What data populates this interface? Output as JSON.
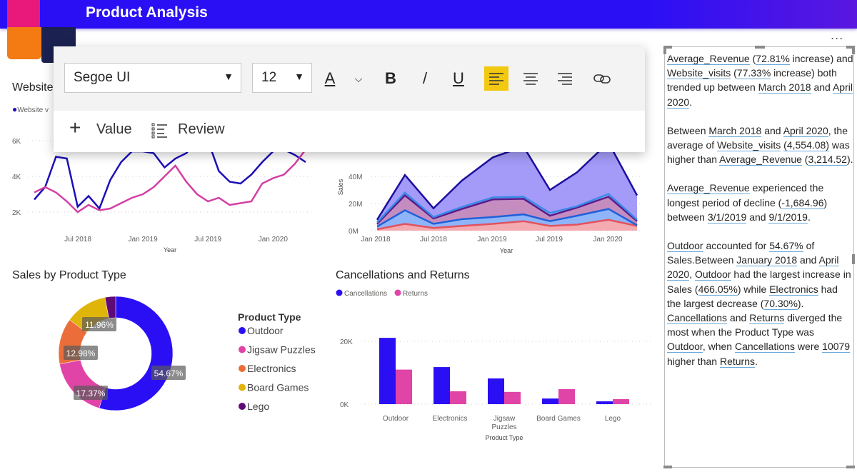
{
  "header": {
    "title": "Product Analysis"
  },
  "more_label": "...",
  "line_visual": {
    "title": "Website",
    "legend": "Website v"
  },
  "area_visual": {},
  "donut_visual": {
    "title": "Sales by Product Type",
    "legend_title": "Product Type"
  },
  "bar_visual": {
    "title": "Cancellations and Returns"
  },
  "toolbar": {
    "font": "Segoe UI",
    "size": "12",
    "font_color": "A",
    "bold": "B",
    "italic": "/",
    "underline": "U",
    "value_label": "Value",
    "review_label": "Review"
  },
  "colors": {
    "accent": "#2a0ff5",
    "highlight": "#f2c811",
    "pink": "#e044a7",
    "orange": "#eb6d3a",
    "gold": "#e0b50a",
    "purple": "#5f0a77"
  },
  "narrative": [
    [
      {
        "t": "Average_Revenue",
        "u": 1
      },
      {
        "t": " ("
      },
      {
        "t": "72.81%",
        "u": 1
      },
      {
        "t": " increase) and "
      },
      {
        "t": "Website_visits",
        "u": 1
      },
      {
        "t": " ("
      },
      {
        "t": "77.33%",
        "u": 1
      },
      {
        "t": " increase) both trended up between "
      },
      {
        "t": "March 2018",
        "u": 1
      },
      {
        "t": " and "
      },
      {
        "t": "April 2020",
        "u": 1
      },
      {
        "t": "."
      }
    ],
    [
      {
        "t": "Between "
      },
      {
        "t": "March 2018",
        "u": 1
      },
      {
        "t": " and "
      },
      {
        "t": "April 2020",
        "u": 1
      },
      {
        "t": ", the average of "
      },
      {
        "t": "Website_visits",
        "u": 1
      },
      {
        "t": " "
      },
      {
        "t": "(4,554.08)",
        "u": 1
      },
      {
        "t": " was higher than "
      },
      {
        "t": "Average_Revenue",
        "u": 1
      },
      {
        "t": " ("
      },
      {
        "t": "3,214.52",
        "u": 1
      },
      {
        "t": ")."
      }
    ],
    [
      {
        "t": "Average_Revenue",
        "u": 1
      },
      {
        "t": " experienced the longest period of decline ("
      },
      {
        "t": "-1,684.96",
        "u": 1
      },
      {
        "t": ") between "
      },
      {
        "t": "3/1/2019",
        "u": 1
      },
      {
        "t": " and "
      },
      {
        "t": "9/1/2019",
        "u": 1
      },
      {
        "t": "."
      }
    ],
    [
      {
        "t": "Outdoor",
        "u": 1
      },
      {
        "t": " accounted for "
      },
      {
        "t": "54.67%",
        "u": 1
      },
      {
        "t": " of Sales.Between "
      },
      {
        "t": "January 2018",
        "u": 1
      },
      {
        "t": " and "
      },
      {
        "t": "April 2020",
        "u": 1
      },
      {
        "t": ", "
      },
      {
        "t": "Outdoor",
        "u": 1
      },
      {
        "t": " had the largest increase in Sales ("
      },
      {
        "t": "466.05%",
        "u": 1
      },
      {
        "t": ") while "
      },
      {
        "t": "Electronics",
        "u": 1
      },
      {
        "t": " had the largest decrease ("
      },
      {
        "t": "70.30%",
        "u": 1
      },
      {
        "t": "). "
      },
      {
        "t": "Cancellations",
        "u": 1
      },
      {
        "t": " and "
      },
      {
        "t": "Returns",
        "u": 1
      },
      {
        "t": " diverged the most when the Product Type was "
      },
      {
        "t": "Outdoor",
        "u": 1
      },
      {
        "t": ", when "
      },
      {
        "t": "Cancellations",
        "u": 1
      },
      {
        "t": " were "
      },
      {
        "t": "10079",
        "u": 1
      },
      {
        "t": " higher than "
      },
      {
        "t": "Returns",
        "u": 1
      },
      {
        "t": "."
      }
    ]
  ],
  "chart_data": [
    {
      "type": "line",
      "title": "Website",
      "xlabel": "Year",
      "ylabel": "",
      "x_start": "Mar 2018",
      "x_end": "Apr 2020",
      "x_ticks": [
        "Jul 2018",
        "Jan 2019",
        "Jul 2019",
        "Jan 2020"
      ],
      "y_ticks": [
        "2K",
        "4K",
        "6K"
      ],
      "ylim": [
        0,
        7000
      ],
      "series": [
        {
          "name": "Website_visits",
          "color": "#1c0fb8",
          "values": [
            2700,
            3400,
            5100,
            5000,
            2300,
            2900,
            2200,
            3800,
            4800,
            5400,
            5400,
            5300,
            4500,
            5000,
            5300,
            6000,
            6000,
            4300,
            3700,
            3600,
            4100,
            4800,
            5400,
            5500,
            5200,
            4800
          ]
        },
        {
          "name": "Average_Revenue",
          "color": "#d43fa5",
          "values": [
            3100,
            3400,
            3100,
            2600,
            2000,
            2400,
            2100,
            2200,
            2500,
            2800,
            3000,
            3400,
            4000,
            4600,
            3700,
            3000,
            2600,
            2800,
            2400,
            2500,
            2600,
            3600,
            3900,
            4100,
            4700,
            5500
          ]
        }
      ]
    },
    {
      "type": "area",
      "stacked": true,
      "xlabel": "Year",
      "ylabel": "Sales",
      "x": [
        "Jan 2018",
        "Apr 2018",
        "Jul 2018",
        "Oct 2018",
        "Jan 2019",
        "Apr 2019",
        "Jul 2019",
        "Oct 2019",
        "Jan 2020",
        "Apr 2020"
      ],
      "x_ticks": [
        "Jan 2018",
        "Jul 2018",
        "Jan 2019",
        "Jul 2019",
        "Jan 2020"
      ],
      "y_ticks": [
        "0M",
        "20M",
        "40M"
      ],
      "ylim": [
        0,
        70
      ],
      "series": [
        {
          "color": "#e2525e",
          "fill": "#f3aab0",
          "values": [
            1,
            5,
            2,
            3.5,
            5,
            7,
            3.5,
            4.5,
            8,
            3.5
          ]
        },
        {
          "color": "#2060d8",
          "fill": "#8fb4fa",
          "values": [
            2,
            10,
            3,
            5,
            5,
            5,
            3.5,
            6.5,
            8,
            0.5
          ]
        },
        {
          "color": "#5a1a8a",
          "fill": "#c58cc0",
          "values": [
            2,
            11,
            4,
            7.5,
            13,
            11.5,
            4,
            6,
            9,
            3
          ]
        },
        {
          "color": "#3a8ae8",
          "fill": "#9fbff5",
          "values": [
            1,
            2,
            1,
            1.5,
            1.5,
            1.5,
            2,
            1,
            2,
            1
          ]
        },
        {
          "color": "#1c0fa0",
          "fill": "#a49af7",
          "values": [
            2,
            13,
            6.5,
            19.5,
            29.5,
            37,
            17,
            25,
            38,
            18
          ]
        }
      ]
    },
    {
      "type": "pie",
      "title": "Sales by Product Type",
      "legend_title": "Product Type",
      "categories": [
        "Outdoor",
        "Jigsaw Puzzles",
        "Electronics",
        "Board Games",
        "Lego"
      ],
      "values": [
        54.67,
        17.37,
        12.98,
        11.96,
        3.02
      ],
      "labels": [
        "54.67%",
        "17.37%",
        "12.98%",
        "11.96%",
        ""
      ],
      "colors": [
        "#2a0ff5",
        "#e044a7",
        "#eb6d3a",
        "#e0b50a",
        "#5f0a77"
      ]
    },
    {
      "type": "bar",
      "title": "Cancellations and Returns",
      "xlabel": "Product Type",
      "categories": [
        "Outdoor",
        "Electronics",
        "Jigsaw Puzzles",
        "Board Games",
        "Lego"
      ],
      "y_ticks": [
        "0K",
        "20K"
      ],
      "ylim": [
        0,
        22000
      ],
      "series": [
        {
          "name": "Cancellations",
          "color": "#2a0ff5",
          "values": [
            21100,
            11800,
            8200,
            1800,
            900
          ]
        },
        {
          "name": "Returns",
          "color": "#e044a7",
          "values": [
            11000,
            4100,
            3900,
            4800,
            1600
          ]
        }
      ]
    }
  ]
}
